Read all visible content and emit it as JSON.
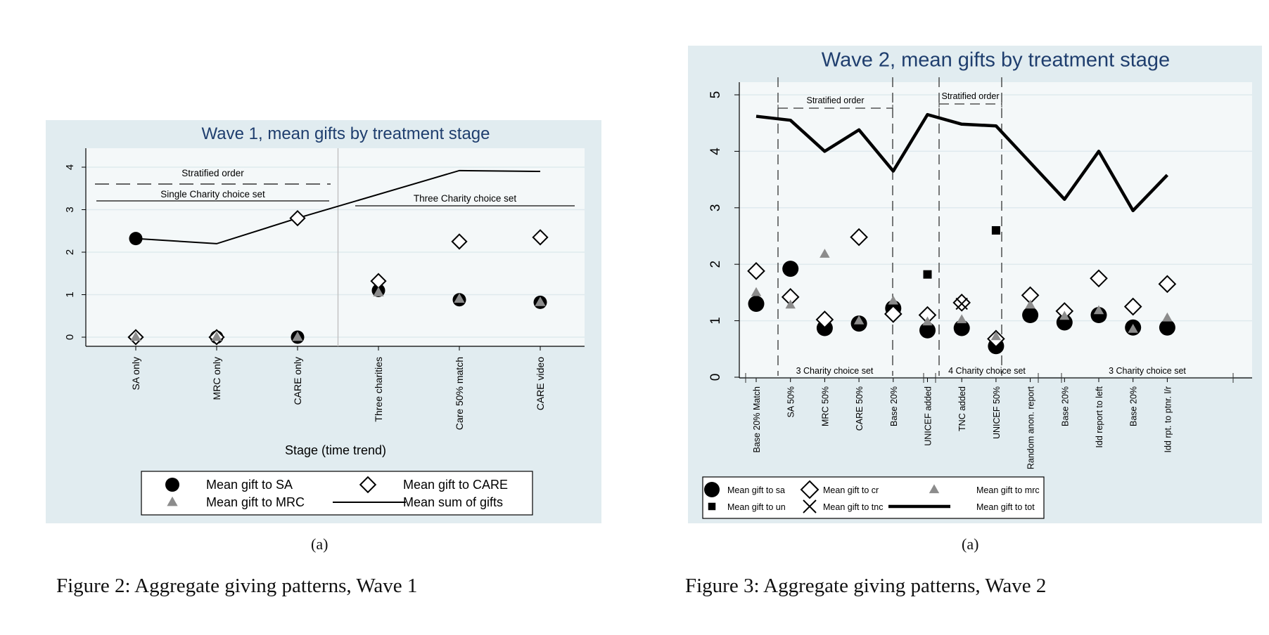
{
  "figures": [
    {
      "sublabel": "(a)",
      "caption": "Figure 2: Aggregate giving patterns, Wave 1"
    },
    {
      "sublabel": "(a)",
      "caption": "Figure 3: Aggregate giving patterns, Wave 2"
    }
  ],
  "chart_data": [
    {
      "type": "scatter",
      "title": "Wave 1, mean gifts by treatment stage",
      "xlabel": "Stage (time trend)",
      "ylabel": "",
      "ylim": [
        0,
        4
      ],
      "yticks": [
        0,
        1,
        2,
        3,
        4
      ],
      "categories": [
        "SA only",
        "MRC only",
        "CARE only",
        "Three charities",
        "Care 50% match",
        "CARE video"
      ],
      "grid": true,
      "brackets": [
        {
          "label": "Stratified order",
          "from": 0,
          "to": 2,
          "level": 3.62,
          "style": "dashed"
        },
        {
          "label": "Single Charity choice set",
          "from": 0,
          "to": 2,
          "level": 3.22,
          "style": "solid"
        },
        {
          "label": "Three Charity choice set",
          "from": 3,
          "to": 5,
          "level": 3.1,
          "style": "solid"
        }
      ],
      "separator_after": 2,
      "series": [
        {
          "name": "Mean gift to SA",
          "marker": "circle",
          "values": [
            2.32,
            0,
            0,
            1.1,
            0.88,
            0.82
          ]
        },
        {
          "name": "Mean gift to CARE",
          "marker": "diamond",
          "values": [
            0,
            0,
            2.8,
            1.32,
            2.25,
            2.35
          ]
        },
        {
          "name": "Mean gift to MRC",
          "marker": "triangle",
          "values": [
            0,
            0,
            0,
            1.05,
            0.9,
            0.82
          ]
        },
        {
          "name": "Mean sum of gifts",
          "marker": "line",
          "values": [
            2.32,
            2.2,
            2.8,
            null,
            3.92,
            3.9
          ]
        }
      ],
      "legend": {
        "placement": "bottom",
        "order": [
          "Mean gift to SA",
          "Mean gift to CARE",
          "Mean gift to MRC",
          "Mean sum of gifts"
        ]
      }
    },
    {
      "type": "scatter",
      "title": "Wave 2, mean gifts by treatment stage",
      "xlabel": "",
      "ylabel": "",
      "ylim": [
        0,
        5
      ],
      "yticks": [
        0,
        1,
        2,
        3,
        4,
        5
      ],
      "categories": [
        "Base 20% Match",
        "SA 50%",
        "MRC 50%",
        "CARE 50%",
        "Base 20%",
        "UNICEF added",
        "TNC added",
        "UNICEF 50%",
        "Random anon. report",
        "Base 20%",
        "Idd report to left",
        "Base 20%",
        "Idd rpt. to ptnr. l/r"
      ],
      "grid": true,
      "top_brackets": [
        {
          "label": "Stratified order",
          "from": 1,
          "to": 3
        },
        {
          "label": "Stratified order",
          "from": 5,
          "to": 6
        }
      ],
      "bottom_brackets": [
        {
          "label": "3 Charity choice set",
          "from": 0,
          "to": 4
        },
        {
          "label": "4 Charity choice set",
          "from": 5,
          "to": 7
        },
        {
          "label": "3 Charity choice set",
          "from": 8,
          "to": 12
        }
      ],
      "series": [
        {
          "name": "Mean gift to sa",
          "marker": "circle",
          "values": [
            1.3,
            1.92,
            0.87,
            0.95,
            1.22,
            0.83,
            0.87,
            0.55,
            1.1,
            0.97,
            1.1,
            0.88,
            0.88
          ]
        },
        {
          "name": "Mean gift to cr",
          "marker": "diamond",
          "values": [
            1.88,
            1.42,
            1.02,
            2.48,
            1.12,
            1.1,
            1.32,
            0.68,
            1.45,
            1.17,
            1.75,
            1.25,
            1.65
          ]
        },
        {
          "name": "Mean gift to mrc",
          "marker": "triangle",
          "values": [
            1.5,
            1.28,
            2.18,
            1.0,
            1.35,
            0.98,
            1.02,
            0.72,
            1.28,
            1.08,
            1.18,
            0.85,
            1.05
          ]
        },
        {
          "name": "Mean gift to un",
          "marker": "square",
          "values": [
            null,
            null,
            null,
            null,
            null,
            1.82,
            null,
            2.6,
            null,
            null,
            null,
            null,
            null
          ]
        },
        {
          "name": "Mean gift to tnc",
          "marker": "x",
          "values": [
            null,
            null,
            null,
            null,
            null,
            null,
            1.3,
            null,
            null,
            null,
            null,
            null,
            null
          ]
        },
        {
          "name": "Mean gift to tot",
          "marker": "thickline",
          "values": [
            4.62,
            4.55,
            4.0,
            4.38,
            3.65,
            4.65,
            4.48,
            4.45,
            3.8,
            3.15,
            4.0,
            2.95,
            3.58
          ]
        }
      ],
      "legend": {
        "placement": "bottom-left",
        "order": [
          "Mean gift to sa",
          "Mean gift to cr",
          "Mean gift to mrc",
          "Mean gift to un",
          "Mean gift to tnc",
          "Mean gift to tot"
        ]
      }
    }
  ]
}
